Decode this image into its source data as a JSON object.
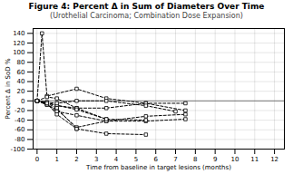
{
  "chart_data": {
    "type": "line",
    "title": "Figure 4: Percent Δ in Sum of Diameters Over Time",
    "subtitle": "(Urothelial Carcinoma; Combination Dose Expansion)",
    "xlabel": "Time from baseline in target lesions (months)",
    "ylabel": "Percent Δ in SoD %",
    "xlim": [
      -0.2,
      12.5
    ],
    "ylim": [
      -100,
      150
    ],
    "xticks": [
      0,
      1,
      2,
      3,
      4,
      5,
      6,
      7,
      8,
      9,
      10,
      11,
      12
    ],
    "yticks": [
      -100,
      -80,
      -60,
      -40,
      -20,
      0,
      20,
      40,
      60,
      80,
      100,
      120,
      140
    ],
    "grid": true,
    "marker": "square",
    "line_style": "dashed",
    "hline": 0,
    "series": [
      {
        "x": [
          0,
          0.25,
          0.5,
          2.0,
          3.5,
          5.5,
          7.5
        ],
        "values": [
          0,
          140,
          10,
          25,
          5,
          -5,
          -5
        ]
      },
      {
        "x": [
          0,
          0.5,
          1.0,
          2.0,
          3.5,
          5.5,
          7.5
        ],
        "values": [
          0,
          8,
          5,
          -15,
          -15,
          -5,
          -20
        ]
      },
      {
        "x": [
          0,
          0.5,
          1.0,
          2.0,
          3.5
        ],
        "values": [
          0,
          -3,
          -10,
          -15,
          -38
        ]
      },
      {
        "x": [
          0,
          0.5,
          1.0,
          2.0,
          3.5,
          5.5,
          7.5
        ],
        "values": [
          0,
          -8,
          -18,
          -55,
          -42,
          -32,
          -28
        ]
      },
      {
        "x": [
          0,
          0.5,
          1.0,
          2.0,
          3.5,
          5.5
        ],
        "values": [
          0,
          -5,
          -15,
          -58,
          -68,
          -70
        ]
      },
      {
        "x": [
          0,
          0.5,
          1.0,
          2.0,
          3.5,
          5.5,
          7.5
        ],
        "values": [
          0,
          -8,
          -22,
          -30,
          -42,
          -42,
          -38
        ]
      },
      {
        "x": [
          0,
          0.5,
          2.0,
          3.5,
          5.5
        ],
        "values": [
          0,
          -5,
          -18,
          -38,
          -40
        ]
      },
      {
        "x": [
          0,
          0.5,
          1.0,
          2.0,
          3.5,
          5.5,
          7.0
        ],
        "values": [
          0,
          -3,
          -5,
          0,
          0,
          -10,
          -22
        ]
      },
      {
        "x": [
          0,
          0.5,
          1.0,
          2.0
        ],
        "values": [
          0,
          -5,
          -28,
          -58
        ]
      }
    ]
  }
}
